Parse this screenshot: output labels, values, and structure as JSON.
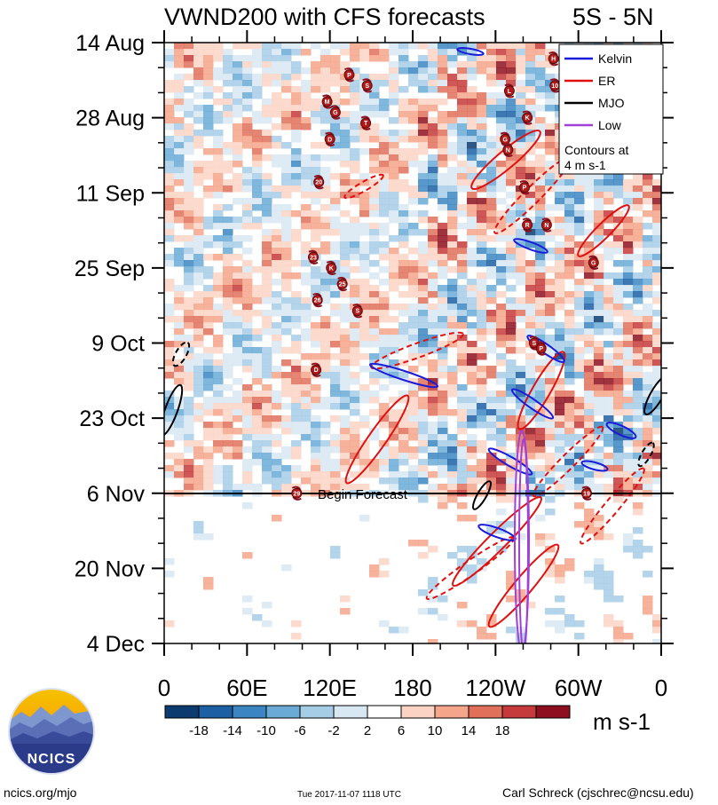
{
  "chart_data": {
    "type": "heatmap",
    "title": "VWND200 with CFS forecasts",
    "region": "5S - 5N",
    "xlabel": "",
    "ylabel": "",
    "x_ticks": [
      "0",
      "60E",
      "120E",
      "180",
      "120W",
      "60W",
      "0"
    ],
    "x_range_deg_east": [
      0,
      360
    ],
    "y_ticks": [
      "14 Aug",
      "28 Aug",
      "11 Sep",
      "25 Sep",
      "9 Oct",
      "23 Oct",
      "6 Nov",
      "20 Nov",
      "4 Dec"
    ],
    "y_range_days_from_14aug": [
      0,
      112
    ],
    "forecast_start_label": "Begin Forecast",
    "forecast_start_day": 84,
    "units": "m s-1",
    "colorbar": {
      "labels": [
        "-18",
        "-14",
        "-10",
        "-6",
        "-2",
        "2",
        "6",
        "10",
        "14",
        "18"
      ],
      "colors": [
        "#0b3b6f",
        "#1c5fa3",
        "#3b86c2",
        "#6aaad6",
        "#a6cde6",
        "#d8e8f2",
        "#ffffff",
        "#fbd3c4",
        "#f4a58a",
        "#e0705a",
        "#c53a3a",
        "#8e1020"
      ]
    },
    "legend": {
      "entries": [
        {
          "name": "Kelvin",
          "color": "#1a1adb"
        },
        {
          "name": "ER",
          "color": "#e01010"
        },
        {
          "name": "MJO",
          "color": "#000000"
        },
        {
          "name": "Low",
          "color": "#a040d8"
        }
      ],
      "note_line1": "Contours at",
      "note_line2": "4 m s-1",
      "placement": "top-right"
    },
    "storms": [
      {
        "label": "H",
        "lon": 282,
        "day": 3
      },
      {
        "label": "K",
        "lon": 290,
        "day": 3
      },
      {
        "label": "P",
        "lon": 134,
        "day": 6
      },
      {
        "label": "S",
        "lon": 147,
        "day": 8
      },
      {
        "label": "L",
        "lon": 250,
        "day": 9
      },
      {
        "label": "10",
        "lon": 283,
        "day": 8
      },
      {
        "label": "M",
        "lon": 118,
        "day": 11
      },
      {
        "label": "G",
        "lon": 124,
        "day": 13
      },
      {
        "label": "T",
        "lon": 146,
        "day": 15
      },
      {
        "label": "K",
        "lon": 263,
        "day": 14
      },
      {
        "label": "D",
        "lon": 120,
        "day": 18
      },
      {
        "label": "G",
        "lon": 247,
        "day": 18
      },
      {
        "label": "N",
        "lon": 249,
        "day": 20
      },
      {
        "label": "M",
        "lon": 310,
        "day": 22
      },
      {
        "label": "L",
        "lon": 335,
        "day": 21
      },
      {
        "label": "20",
        "lon": 112,
        "day": 26
      },
      {
        "label": "P",
        "lon": 261,
        "day": 27
      },
      {
        "label": "R",
        "lon": 263,
        "day": 34
      },
      {
        "label": "N",
        "lon": 277,
        "day": 34
      },
      {
        "label": "23",
        "lon": 108,
        "day": 40
      },
      {
        "label": "G",
        "lon": 311,
        "day": 41
      },
      {
        "label": "K",
        "lon": 121,
        "day": 42
      },
      {
        "label": "25",
        "lon": 129,
        "day": 45
      },
      {
        "label": "26",
        "lon": 111,
        "day": 48
      },
      {
        "label": "S",
        "lon": 140,
        "day": 50
      },
      {
        "label": "S",
        "lon": 268,
        "day": 56
      },
      {
        "label": "P",
        "lon": 273,
        "day": 57
      },
      {
        "label": "D",
        "lon": 110,
        "day": 61
      },
      {
        "label": "29",
        "lon": 96,
        "day": 84
      },
      {
        "label": "19",
        "lon": 306,
        "day": 84
      }
    ]
  },
  "footer": {
    "left": "ncics.org/mjo",
    "center": "Tue 2017-11-07 1118 UTC",
    "right": "Carl Schreck (cjschrec@ncsu.edu)"
  },
  "logo": {
    "text": "NCICS"
  }
}
